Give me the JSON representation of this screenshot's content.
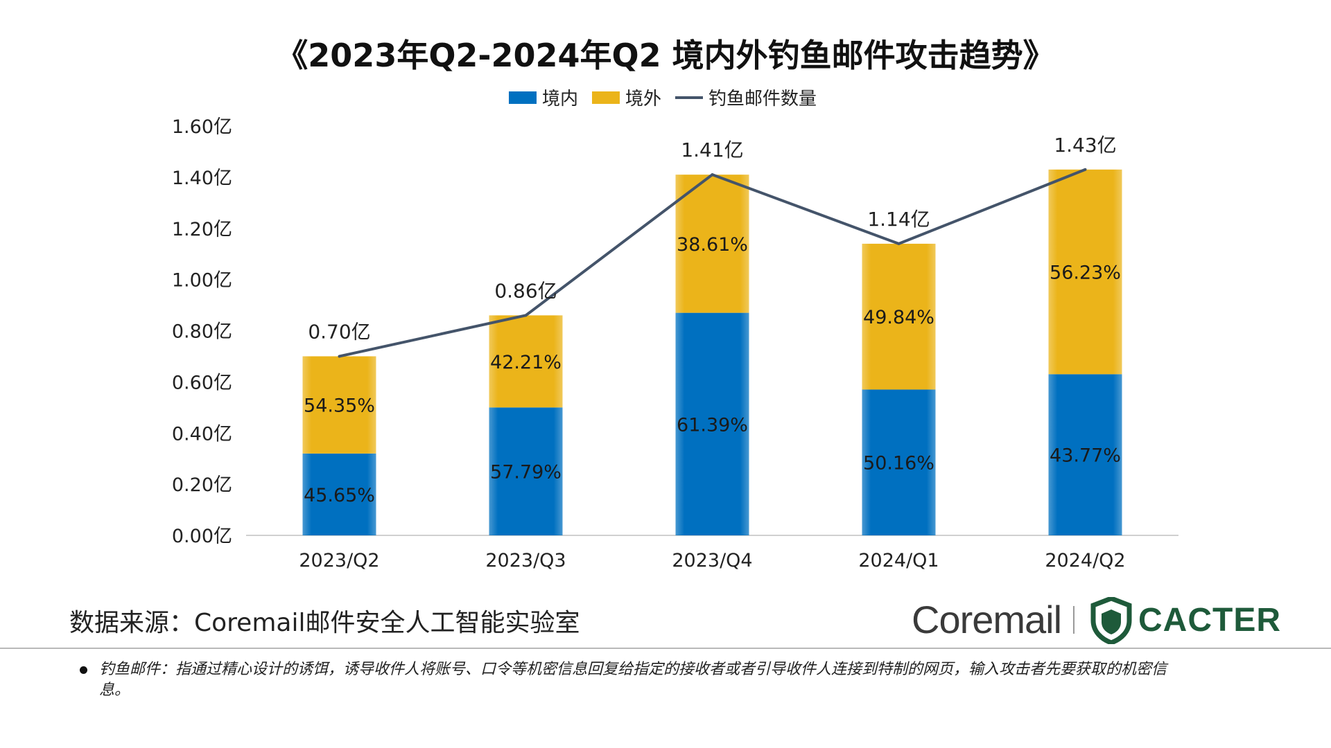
{
  "colors": {
    "domestic": "#0070C0",
    "foreign": "#EBB41A",
    "line": "#44546A",
    "axis": "#D0D0D0",
    "cacter_green": "#1E5A3A"
  },
  "chart_data": {
    "type": "bar",
    "stacked": true,
    "title": "《2023年Q2-2024年Q2 境内外钓鱼邮件攻击趋势》",
    "categories": [
      "2023/Q2",
      "2023/Q3",
      "2023/Q4",
      "2024/Q1",
      "2024/Q2"
    ],
    "y_tick_labels": [
      "0.00亿",
      "0.20亿",
      "0.40亿",
      "0.60亿",
      "0.80亿",
      "1.00亿",
      "1.20亿",
      "1.40亿",
      "1.60亿"
    ],
    "ylim": [
      0,
      1.6
    ],
    "grid": false,
    "legend_position": "top",
    "series": [
      {
        "name": "境内",
        "kind": "bar",
        "color_key": "domestic",
        "values": [
          0.32,
          0.5,
          0.87,
          0.57,
          0.63
        ],
        "labels": [
          "45.65%",
          "57.79%",
          "61.39%",
          "50.16%",
          "43.77%"
        ]
      },
      {
        "name": "境外",
        "kind": "bar",
        "color_key": "foreign",
        "values": [
          0.38,
          0.36,
          0.54,
          0.57,
          0.8
        ],
        "labels": [
          "54.35%",
          "42.21%",
          "38.61%",
          "49.84%",
          "56.23%"
        ]
      },
      {
        "name": "钓鱼邮件数量",
        "kind": "line",
        "color_key": "line",
        "values": [
          0.7,
          0.86,
          1.41,
          1.14,
          1.43
        ],
        "labels": [
          "0.70亿",
          "0.86亿",
          "1.41亿",
          "1.14亿",
          "1.43亿"
        ]
      }
    ]
  },
  "footer": {
    "source": "数据来源：Coremail邮件安全人工智能实验室",
    "logo_coremail": "Coremail",
    "logo_cacter": "CACTER",
    "footnote": "钓鱼邮件：指通过精心设计的诱饵，诱导收件人将账号、口令等机密信息回复给指定的接收者或者引导收件人连接到特制的网页，输入攻击者先要获取的机密信息。"
  }
}
